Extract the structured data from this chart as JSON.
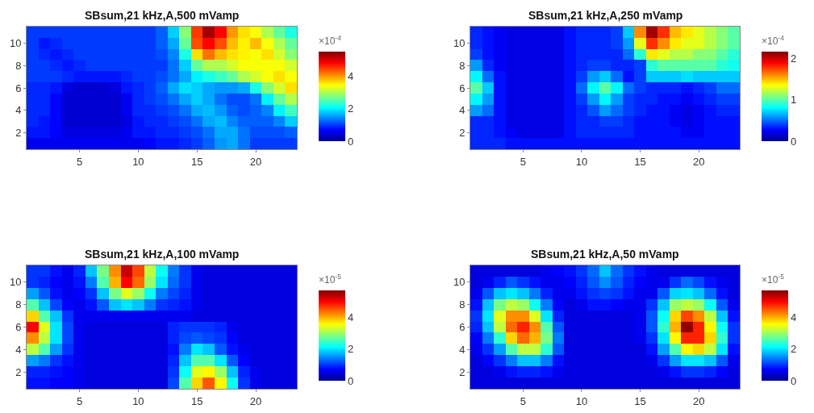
{
  "chart_data": [
    {
      "type": "heatmap",
      "title": "SBsum,21 kHz,A,500 mVamp",
      "clabel": "×10$^{-4}$",
      "clim": [
        0,
        5.5
      ],
      "cticks": [
        0,
        2,
        4
      ],
      "categories": [
        null,
        null,
        null,
        null,
        "5",
        null,
        null,
        null,
        null,
        "10",
        null,
        null,
        null,
        null,
        "15",
        null,
        null,
        null,
        null,
        "20",
        null,
        null,
        null
      ],
      "y_categories": [
        null,
        "10",
        null,
        "8",
        null,
        "6",
        null,
        "4",
        null,
        "2",
        null
      ],
      "cells": [
        [
          1.0,
          1.0,
          1.0,
          1.0,
          1.0,
          1.0,
          1.0,
          1.0,
          1.0,
          1.0,
          1.0,
          1.2,
          1.8,
          2.8,
          4.5,
          5.3,
          4.8,
          4.0,
          3.6,
          3.4,
          3.0,
          2.6,
          2.2
        ],
        [
          1.0,
          0.8,
          0.9,
          1.0,
          1.0,
          1.0,
          1.0,
          1.0,
          1.0,
          1.0,
          1.0,
          1.2,
          1.6,
          2.6,
          4.4,
          4.8,
          4.4,
          3.8,
          3.5,
          3.8,
          3.4,
          3.0,
          2.6
        ],
        [
          1.0,
          0.9,
          0.8,
          0.9,
          1.0,
          1.0,
          1.0,
          1.0,
          1.0,
          1.0,
          1.0,
          1.1,
          1.4,
          2.2,
          3.6,
          4.2,
          3.8,
          3.6,
          3.5,
          3.4,
          3.6,
          3.2,
          2.8
        ],
        [
          1.0,
          1.0,
          0.9,
          0.8,
          0.9,
          1.0,
          1.0,
          1.0,
          1.0,
          1.0,
          1.0,
          1.0,
          1.3,
          1.8,
          2.6,
          3.0,
          3.0,
          3.2,
          3.4,
          3.4,
          3.4,
          3.4,
          3.2
        ],
        [
          1.0,
          1.0,
          1.0,
          0.9,
          0.8,
          0.8,
          0.8,
          0.8,
          0.9,
          1.0,
          1.0,
          1.1,
          1.3,
          1.6,
          2.0,
          2.2,
          2.4,
          2.6,
          3.0,
          3.2,
          3.4,
          3.6,
          3.4
        ],
        [
          0.9,
          0.9,
          0.8,
          0.5,
          0.4,
          0.4,
          0.4,
          0.5,
          0.8,
          0.9,
          1.0,
          1.2,
          1.6,
          1.9,
          1.8,
          1.6,
          1.5,
          1.5,
          1.6,
          2.2,
          2.8,
          3.2,
          3.6
        ],
        [
          0.9,
          0.9,
          0.7,
          0.4,
          0.4,
          0.4,
          0.4,
          0.4,
          0.6,
          0.9,
          1.0,
          1.1,
          1.3,
          1.6,
          1.8,
          1.6,
          1.3,
          1.1,
          1.1,
          1.3,
          2.0,
          2.6,
          3.0
        ],
        [
          0.9,
          0.9,
          0.7,
          0.4,
          0.4,
          0.4,
          0.4,
          0.4,
          0.6,
          0.9,
          0.9,
          1.0,
          1.1,
          1.3,
          1.6,
          1.7,
          1.5,
          1.2,
          1.1,
          1.2,
          1.4,
          2.0,
          2.4
        ],
        [
          0.9,
          0.8,
          0.7,
          0.4,
          0.4,
          0.4,
          0.4,
          0.4,
          0.5,
          0.8,
          0.9,
          0.9,
          1.0,
          1.1,
          1.3,
          1.6,
          1.7,
          1.4,
          1.2,
          1.2,
          1.2,
          1.4,
          1.8
        ],
        [
          0.8,
          0.8,
          0.7,
          0.5,
          0.5,
          0.5,
          0.5,
          0.5,
          0.6,
          0.8,
          0.8,
          0.9,
          0.9,
          1.0,
          1.1,
          1.3,
          1.6,
          1.6,
          1.3,
          1.1,
          1.1,
          1.1,
          1.2
        ],
        [
          0.6,
          0.6,
          0.6,
          0.6,
          0.6,
          0.6,
          0.6,
          0.6,
          0.6,
          0.6,
          0.7,
          0.8,
          0.8,
          0.9,
          1.0,
          1.2,
          1.5,
          1.6,
          1.3,
          1.0,
          1.0,
          1.0,
          1.0
        ]
      ]
    },
    {
      "type": "heatmap",
      "title": "SBsum,21 kHz,A,250 mVamp",
      "clabel": "×10$^{-4}$",
      "clim": [
        0,
        2.17
      ],
      "cticks": [
        0,
        1,
        2
      ],
      "categories": [
        null,
        null,
        null,
        null,
        "5",
        null,
        null,
        null,
        null,
        "10",
        null,
        null,
        null,
        null,
        "15",
        null,
        null,
        null,
        null,
        "20",
        null,
        null,
        null
      ],
      "y_categories": [
        null,
        "10",
        null,
        "8",
        null,
        "6",
        null,
        "4",
        null,
        "2",
        null
      ],
      "cells": [
        [
          0.35,
          0.3,
          0.25,
          0.2,
          0.2,
          0.2,
          0.2,
          0.2,
          0.3,
          0.35,
          0.35,
          0.35,
          0.4,
          0.7,
          1.6,
          2.1,
          1.8,
          1.5,
          1.4,
          1.3,
          1.2,
          1.1,
          1.0
        ],
        [
          0.35,
          0.3,
          0.25,
          0.2,
          0.2,
          0.2,
          0.2,
          0.2,
          0.3,
          0.35,
          0.35,
          0.35,
          0.4,
          0.6,
          1.3,
          1.8,
          1.6,
          1.4,
          1.3,
          1.3,
          1.2,
          1.1,
          1.0
        ],
        [
          0.4,
          0.3,
          0.25,
          0.2,
          0.2,
          0.2,
          0.2,
          0.2,
          0.3,
          0.35,
          0.35,
          0.35,
          0.35,
          0.5,
          0.9,
          1.4,
          1.3,
          1.2,
          1.2,
          1.1,
          1.1,
          1.0,
          0.9
        ],
        [
          0.6,
          0.35,
          0.25,
          0.2,
          0.2,
          0.2,
          0.2,
          0.2,
          0.3,
          0.35,
          0.4,
          0.4,
          0.35,
          0.35,
          0.4,
          0.9,
          1.0,
          1.0,
          1.0,
          1.0,
          1.0,
          0.9,
          0.85
        ],
        [
          0.8,
          0.5,
          0.3,
          0.2,
          0.2,
          0.2,
          0.2,
          0.2,
          0.3,
          0.4,
          0.6,
          0.7,
          0.5,
          0.3,
          0.4,
          0.7,
          0.7,
          0.7,
          0.75,
          0.7,
          0.7,
          0.7,
          0.7
        ],
        [
          1.0,
          0.7,
          0.3,
          0.2,
          0.2,
          0.2,
          0.2,
          0.2,
          0.3,
          0.5,
          0.8,
          1.0,
          0.8,
          0.5,
          0.4,
          0.35,
          0.35,
          0.35,
          0.3,
          0.35,
          0.4,
          0.5,
          0.5
        ],
        [
          0.8,
          0.6,
          0.3,
          0.2,
          0.2,
          0.2,
          0.2,
          0.2,
          0.3,
          0.4,
          0.6,
          0.8,
          0.6,
          0.4,
          0.35,
          0.35,
          0.3,
          0.3,
          0.25,
          0.3,
          0.35,
          0.4,
          0.4
        ],
        [
          0.6,
          0.5,
          0.3,
          0.2,
          0.2,
          0.2,
          0.2,
          0.2,
          0.3,
          0.35,
          0.45,
          0.6,
          0.5,
          0.4,
          0.35,
          0.3,
          0.3,
          0.25,
          0.2,
          0.25,
          0.3,
          0.35,
          0.35
        ],
        [
          0.35,
          0.35,
          0.3,
          0.2,
          0.2,
          0.2,
          0.2,
          0.2,
          0.3,
          0.35,
          0.35,
          0.4,
          0.4,
          0.35,
          0.3,
          0.3,
          0.3,
          0.25,
          0.2,
          0.25,
          0.3,
          0.3,
          0.3
        ],
        [
          0.35,
          0.35,
          0.3,
          0.25,
          0.2,
          0.2,
          0.2,
          0.2,
          0.3,
          0.35,
          0.35,
          0.35,
          0.35,
          0.35,
          0.3,
          0.3,
          0.3,
          0.3,
          0.25,
          0.25,
          0.3,
          0.3,
          0.3
        ],
        [
          0.35,
          0.35,
          0.35,
          0.3,
          0.3,
          0.3,
          0.3,
          0.3,
          0.3,
          0.3,
          0.3,
          0.3,
          0.3,
          0.3,
          0.3,
          0.3,
          0.3,
          0.3,
          0.3,
          0.3,
          0.3,
          0.3,
          0.3
        ]
      ]
    },
    {
      "type": "heatmap",
      "title": "SBsum,21 kHz,A,100 mVamp",
      "clabel": "×10$^{-5}$",
      "clim": [
        0,
        5.7
      ],
      "cticks": [
        0,
        2,
        4
      ],
      "categories": [
        null,
        null,
        null,
        null,
        "5",
        null,
        null,
        null,
        null,
        "10",
        null,
        null,
        null,
        null,
        "15",
        null,
        null,
        null,
        null,
        "20",
        null,
        null,
        null
      ],
      "y_categories": [
        null,
        "10",
        null,
        "8",
        null,
        "6",
        null,
        "4",
        null,
        "2",
        null
      ],
      "cells": [
        [
          1.0,
          1.0,
          0.8,
          0.6,
          0.9,
          1.8,
          2.8,
          4.2,
          5.3,
          4.6,
          3.2,
          2.2,
          1.4,
          1.0,
          0.6,
          0.5,
          0.5,
          0.5,
          0.5,
          0.5,
          0.5,
          0.5,
          0.5
        ],
        [
          1.0,
          0.9,
          0.7,
          0.6,
          0.8,
          1.4,
          2.6,
          4.0,
          5.0,
          4.4,
          3.0,
          2.0,
          1.3,
          1.0,
          0.6,
          0.5,
          0.5,
          0.5,
          0.5,
          0.5,
          0.5,
          0.5,
          0.5
        ],
        [
          1.6,
          1.2,
          0.8,
          0.6,
          0.7,
          1.0,
          1.8,
          2.8,
          3.4,
          3.0,
          2.2,
          1.4,
          1.1,
          0.9,
          0.6,
          0.5,
          0.5,
          0.5,
          0.5,
          0.5,
          0.5,
          0.5,
          0.5
        ],
        [
          2.6,
          1.8,
          1.1,
          0.7,
          0.6,
          0.8,
          1.2,
          1.8,
          2.0,
          1.8,
          1.4,
          1.0,
          0.9,
          0.8,
          0.6,
          0.5,
          0.5,
          0.5,
          0.5,
          0.5,
          0.5,
          0.5,
          0.5
        ],
        [
          3.8,
          2.6,
          1.8,
          1.0,
          0.6,
          0.6,
          0.6,
          0.6,
          0.6,
          0.6,
          0.6,
          0.6,
          0.6,
          0.6,
          0.5,
          0.5,
          0.5,
          0.5,
          0.5,
          0.5,
          0.5,
          0.5,
          0.5
        ],
        [
          5.0,
          3.4,
          2.0,
          1.1,
          0.6,
          0.5,
          0.5,
          0.5,
          0.5,
          0.5,
          0.5,
          0.5,
          0.9,
          1.0,
          1.0,
          1.0,
          0.9,
          0.6,
          0.5,
          0.5,
          0.5,
          0.5,
          0.5
        ],
        [
          4.2,
          3.2,
          2.0,
          1.1,
          0.6,
          0.5,
          0.5,
          0.5,
          0.5,
          0.5,
          0.5,
          0.5,
          0.9,
          1.1,
          1.2,
          1.1,
          1.0,
          0.7,
          0.5,
          0.5,
          0.5,
          0.5,
          0.5
        ],
        [
          3.2,
          2.6,
          1.6,
          1.0,
          0.6,
          0.5,
          0.5,
          0.5,
          0.5,
          0.5,
          0.5,
          0.5,
          0.8,
          1.4,
          2.0,
          1.8,
          1.2,
          0.8,
          0.6,
          0.5,
          0.5,
          0.5,
          0.5
        ],
        [
          1.6,
          1.4,
          1.0,
          0.8,
          0.6,
          0.5,
          0.5,
          0.5,
          0.5,
          0.5,
          0.5,
          0.5,
          0.9,
          1.8,
          2.6,
          2.6,
          2.0,
          1.2,
          0.7,
          0.5,
          0.5,
          0.5,
          0.5
        ],
        [
          0.9,
          0.9,
          0.8,
          0.7,
          0.6,
          0.5,
          0.5,
          0.5,
          0.5,
          0.5,
          0.5,
          0.5,
          1.0,
          2.2,
          3.4,
          3.6,
          3.0,
          1.8,
          0.9,
          0.6,
          0.5,
          0.5,
          0.5
        ],
        [
          0.8,
          0.8,
          0.7,
          0.7,
          0.6,
          0.5,
          0.5,
          0.5,
          0.5,
          0.5,
          0.5,
          0.5,
          1.1,
          2.6,
          3.8,
          4.5,
          3.6,
          2.2,
          1.0,
          0.6,
          0.5,
          0.5,
          0.5
        ]
      ]
    },
    {
      "type": "heatmap",
      "title": "SBsum,21 kHz,A,50 mVamp",
      "clabel": "×10$^{-5}$",
      "clim": [
        0,
        5.7
      ],
      "cticks": [
        0,
        2,
        4
      ],
      "categories": [
        null,
        null,
        null,
        null,
        "5",
        null,
        null,
        null,
        null,
        "10",
        null,
        null,
        null,
        null,
        "15",
        null,
        null,
        null,
        null,
        "20",
        null,
        null,
        null
      ],
      "y_categories": [
        null,
        "10",
        null,
        "8",
        null,
        "6",
        null,
        "4",
        null,
        "2",
        null
      ],
      "cells": [
        [
          0.5,
          0.5,
          0.5,
          0.5,
          0.5,
          0.5,
          0.6,
          0.7,
          0.8,
          1.0,
          1.3,
          1.8,
          1.3,
          1.0,
          0.8,
          0.6,
          0.5,
          0.5,
          0.5,
          0.5,
          0.5,
          0.5,
          0.5
        ],
        [
          0.5,
          0.6,
          0.9,
          1.2,
          1.0,
          0.8,
          0.6,
          0.6,
          0.7,
          0.9,
          1.2,
          1.5,
          1.2,
          0.9,
          0.7,
          0.6,
          0.6,
          1.0,
          1.3,
          1.1,
          0.8,
          0.6,
          0.5
        ],
        [
          0.6,
          1.2,
          1.8,
          2.0,
          1.8,
          1.4,
          0.9,
          0.6,
          0.6,
          0.8,
          1.0,
          1.1,
          1.0,
          0.8,
          0.6,
          0.6,
          1.2,
          1.9,
          2.0,
          1.8,
          1.3,
          0.8,
          0.5
        ],
        [
          0.8,
          1.8,
          2.8,
          3.2,
          3.0,
          2.2,
          1.4,
          0.7,
          0.5,
          0.6,
          0.8,
          0.8,
          0.7,
          0.6,
          0.6,
          1.0,
          1.8,
          3.0,
          3.2,
          3.0,
          2.2,
          1.2,
          0.6
        ],
        [
          1.0,
          2.0,
          3.4,
          4.2,
          4.2,
          3.4,
          2.0,
          0.9,
          0.5,
          0.5,
          0.5,
          0.5,
          0.5,
          0.5,
          0.6,
          1.2,
          2.2,
          3.8,
          4.6,
          4.2,
          3.2,
          1.8,
          0.8
        ],
        [
          0.9,
          1.8,
          3.2,
          4.4,
          4.8,
          4.2,
          2.6,
          1.2,
          0.5,
          0.5,
          0.5,
          0.5,
          0.5,
          0.5,
          0.6,
          1.2,
          2.4,
          4.0,
          5.6,
          4.8,
          3.6,
          2.2,
          1.0
        ],
        [
          0.7,
          1.4,
          2.4,
          3.8,
          4.4,
          4.0,
          2.8,
          1.4,
          0.5,
          0.5,
          0.5,
          0.5,
          0.5,
          0.5,
          0.6,
          1.0,
          2.0,
          3.6,
          4.8,
          4.8,
          3.8,
          2.4,
          1.0
        ],
        [
          0.6,
          1.0,
          1.6,
          2.6,
          3.2,
          3.2,
          2.4,
          1.2,
          0.5,
          0.5,
          0.5,
          0.5,
          0.5,
          0.5,
          0.5,
          0.8,
          1.6,
          2.6,
          3.6,
          3.8,
          3.2,
          2.0,
          0.8
        ],
        [
          0.5,
          0.7,
          1.0,
          1.4,
          1.8,
          1.8,
          1.4,
          0.8,
          0.5,
          0.5,
          0.5,
          0.5,
          0.5,
          0.5,
          0.5,
          0.6,
          1.0,
          1.6,
          2.0,
          2.0,
          1.8,
          1.2,
          0.6
        ],
        [
          0.5,
          0.5,
          0.6,
          0.8,
          0.9,
          0.9,
          0.8,
          0.6,
          0.5,
          0.5,
          0.5,
          0.5,
          0.5,
          0.5,
          0.5,
          0.5,
          0.6,
          0.8,
          1.0,
          1.0,
          0.9,
          0.7,
          0.5
        ],
        [
          0.5,
          0.5,
          0.5,
          0.5,
          0.5,
          0.5,
          0.5,
          0.5,
          0.5,
          0.5,
          0.5,
          0.5,
          0.5,
          0.5,
          0.5,
          0.5,
          0.5,
          0.5,
          0.5,
          0.5,
          0.5,
          0.5,
          0.5
        ]
      ]
    }
  ]
}
